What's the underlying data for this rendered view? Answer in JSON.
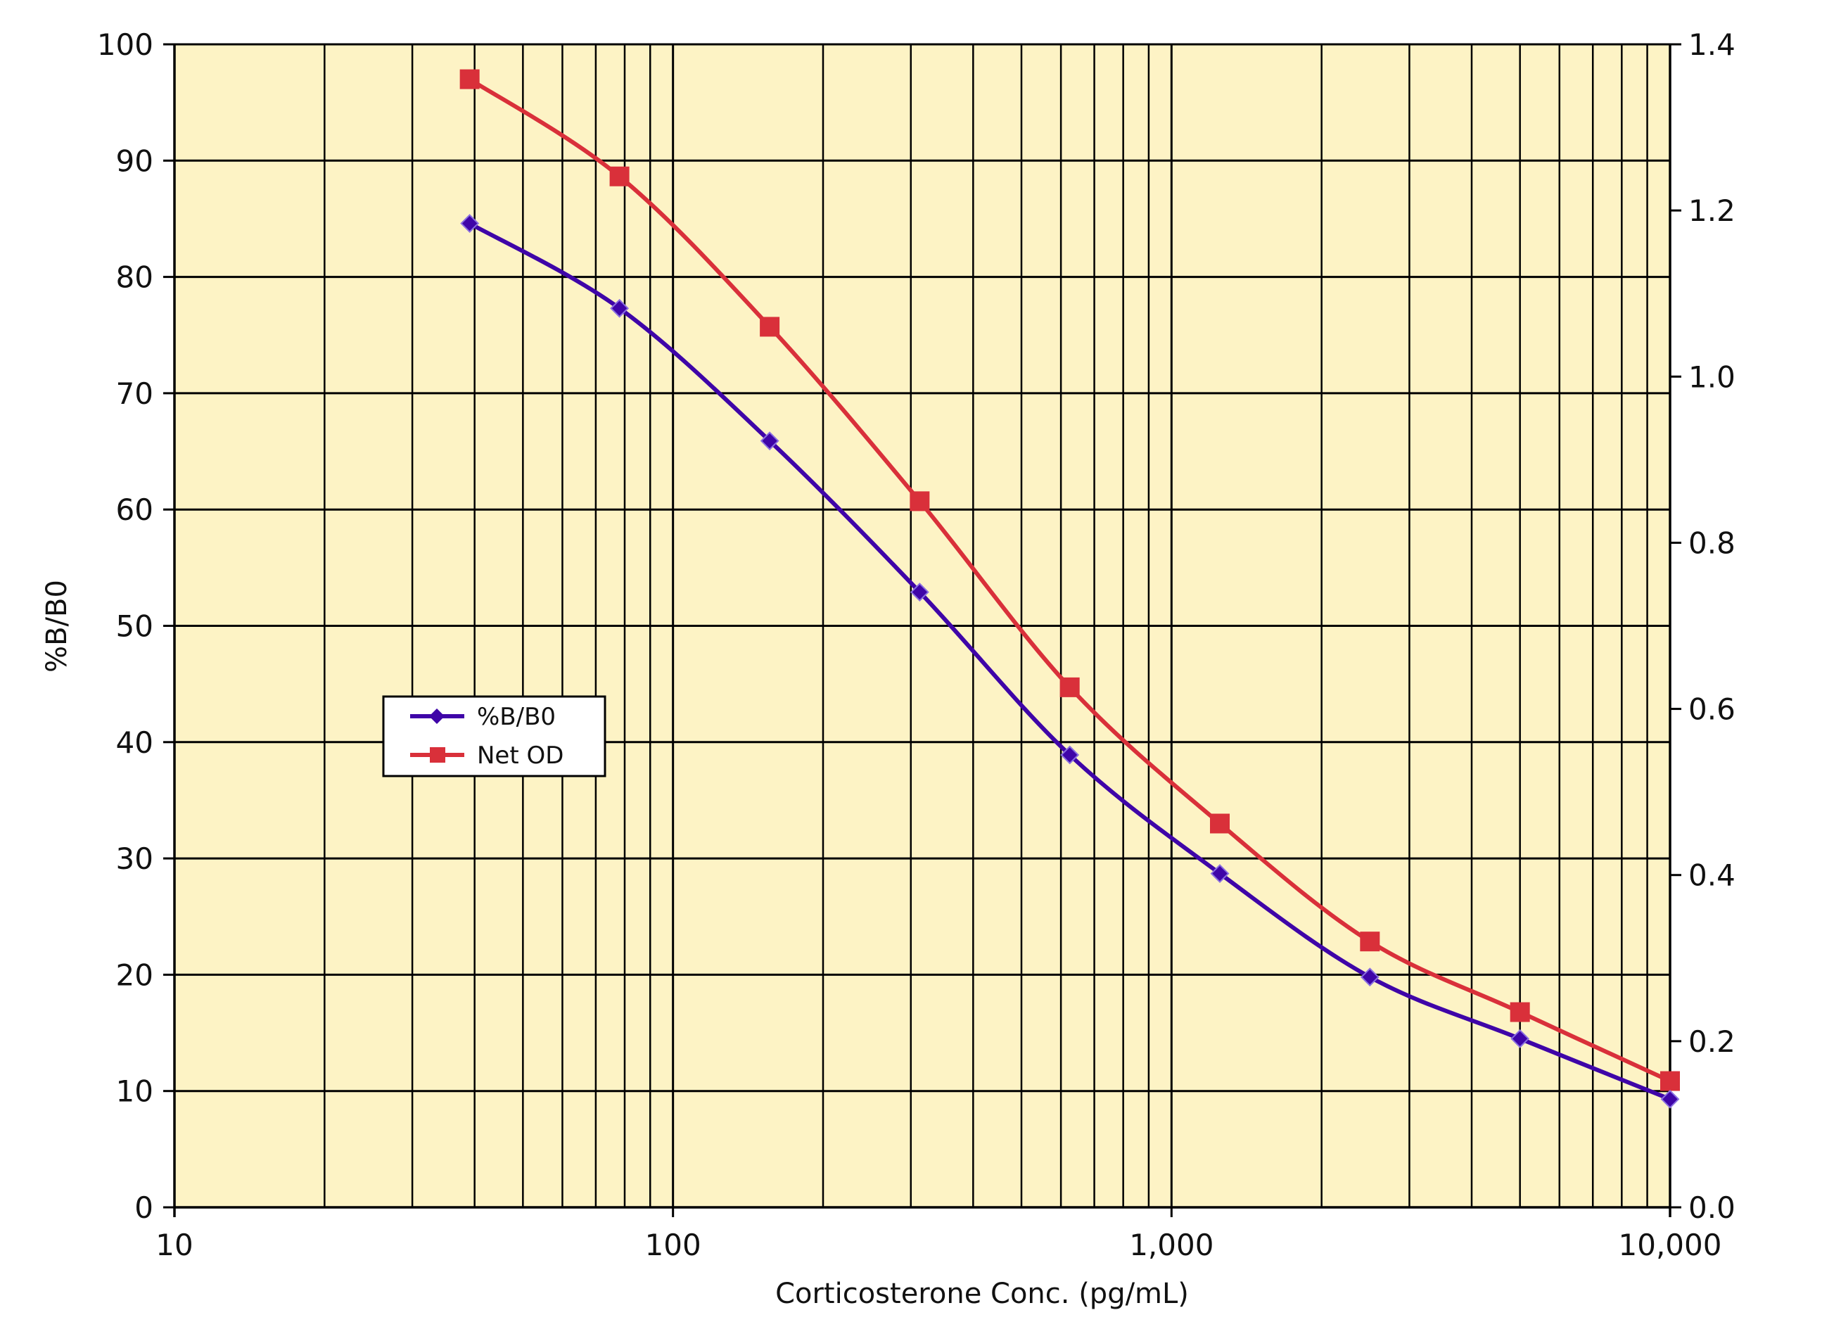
{
  "chart_data": {
    "type": "line",
    "xlabel": "Corticosterone Conc. (pg/mL)",
    "ylabel": "%B/B0",
    "x_scale": "log",
    "xlim": [
      10,
      10000
    ],
    "ylim": [
      0,
      100
    ],
    "y2lim": [
      0,
      1.4
    ],
    "grid": true,
    "x_ticks": [
      10,
      100,
      1000,
      10000
    ],
    "x_tick_labels": [
      "10",
      "100",
      "1,000",
      "10,000"
    ],
    "y_ticks": [
      0,
      10,
      20,
      30,
      40,
      50,
      60,
      70,
      80,
      90,
      100
    ],
    "y_tick_labels": [
      "0",
      "10",
      "20",
      "30",
      "40",
      "50",
      "60",
      "70",
      "80",
      "90",
      "100"
    ],
    "y2_ticks": [
      0,
      0.2,
      0.4,
      0.6,
      0.8,
      1.0,
      1.2,
      1.4
    ],
    "y2_tick_labels": [
      "0.0",
      "0.2",
      "0.4",
      "0.6",
      "0.8",
      "1.0",
      "1.2",
      "1.4"
    ],
    "x": [
      39.1,
      78.1,
      156.3,
      312.5,
      625,
      1250,
      2500,
      5000,
      10000
    ],
    "legend_position": "center-left",
    "series": [
      {
        "name": "%B/B0",
        "axis": "left",
        "color": "#3f05a8",
        "marker": "diamond",
        "values": [
          84.6,
          77.3,
          65.9,
          52.9,
          38.9,
          28.7,
          19.8,
          14.5,
          9.3
        ]
      },
      {
        "name": "Net OD",
        "axis": "right",
        "color": "#d9303a",
        "marker": "square",
        "values": [
          1.358,
          1.241,
          1.06,
          0.85,
          0.626,
          0.462,
          0.32,
          0.235,
          0.152
        ]
      }
    ],
    "colors": {
      "plot_background": "#fdf3c5",
      "grid": "#000000"
    }
  }
}
